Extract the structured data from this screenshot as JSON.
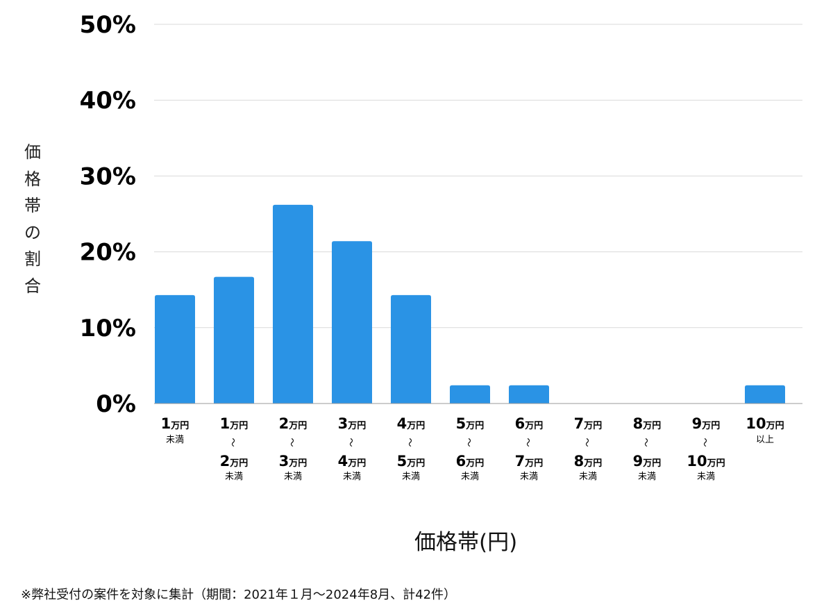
{
  "chart_data": {
    "type": "bar",
    "categories": [
      [
        "1万円",
        "未満"
      ],
      [
        "1万円",
        "〜",
        "2万円",
        "未満"
      ],
      [
        "2万円",
        "〜",
        "3万円",
        "未満"
      ],
      [
        "3万円",
        "〜",
        "4万円",
        "未満"
      ],
      [
        "4万円",
        "〜",
        "5万円",
        "未満"
      ],
      [
        "5万円",
        "〜",
        "6万円",
        "未満"
      ],
      [
        "6万円",
        "〜",
        "7万円",
        "未満"
      ],
      [
        "7万円",
        "〜",
        "8万円",
        "未満"
      ],
      [
        "8万円",
        "〜",
        "9万円",
        "未満"
      ],
      [
        "9万円",
        "〜",
        "10万円",
        "未満"
      ],
      [
        "10万円",
        "以上"
      ]
    ],
    "values": [
      14.3,
      16.7,
      26.2,
      21.4,
      14.3,
      2.4,
      2.4,
      0,
      0,
      0,
      2.4
    ],
    "ylim": [
      0,
      50
    ],
    "yticks": [
      "0%",
      "10%",
      "20%",
      "30%",
      "40%",
      "50%"
    ],
    "ylabel": "価格帯の割合",
    "xlabel": "価格帯(円)",
    "grid": "horizontal",
    "bar_color": "#2a93e5",
    "grid_color": "#d9d9d9"
  },
  "footnote": "※弊社受付の案件を対象に集計（期間：2021年１月〜2024年8月、計42件）"
}
